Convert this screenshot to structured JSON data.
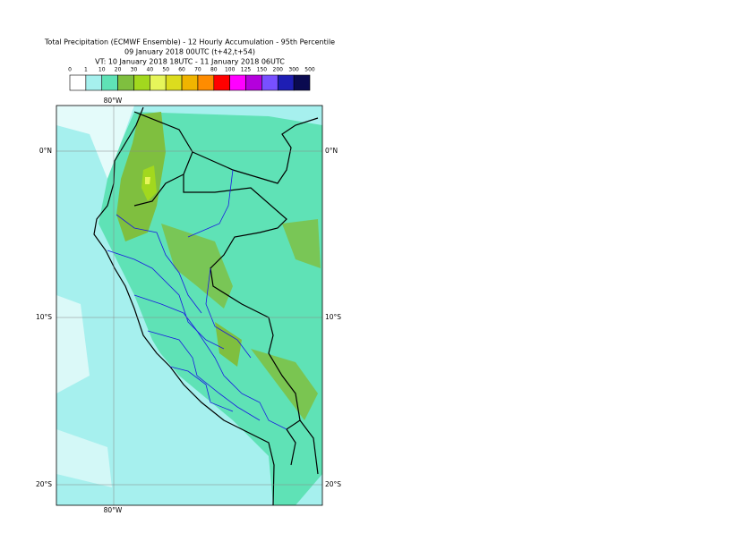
{
  "header": {
    "title_lines": [
      "Total Precipitation (ECMWF Ensemble) - 12 Hourly Accumulation - 95th Percentile",
      "09 January 2018 00UTC (t+42,t+54)",
      "VT: 10 January 2018 18UTC - 11 January 2018 06UTC"
    ]
  },
  "legend": {
    "labels": [
      0,
      1,
      10,
      20,
      30,
      40,
      50,
      60,
      70,
      80,
      100,
      125,
      150,
      200,
      300,
      500
    ],
    "colors": [
      "#ffffff",
      "#a6f0ee",
      "#5fe2b6",
      "#7fbf3f",
      "#a2d81e",
      "#e6f55a",
      "#dcdc1e",
      "#f0b400",
      "#ff8c00",
      "#ff0000",
      "#ff00ff",
      "#b400dc",
      "#7850ff",
      "#1e1eb4",
      "#0a0a50"
    ]
  },
  "map": {
    "lon_labels": [
      "80°W",
      "80°W"
    ],
    "lat_labels": [
      "0°N",
      "10°S",
      "20°S"
    ]
  }
}
